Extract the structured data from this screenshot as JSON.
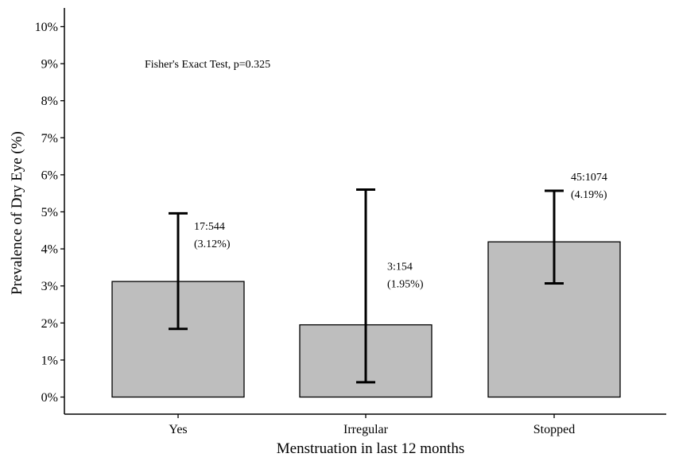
{
  "chart_data": {
    "type": "bar",
    "title": "",
    "xlabel": "Menstruation in last 12 months",
    "ylabel": "Prevalence of Dry Eye (%)",
    "categories": [
      "Yes",
      "Irregular",
      "Stopped"
    ],
    "values": [
      3.12,
      1.95,
      4.19
    ],
    "error_low": [
      1.84,
      0.4,
      3.07
    ],
    "error_high": [
      4.96,
      5.6,
      5.57
    ],
    "value_labels": [
      {
        "count": "17:544",
        "pct": "(3.12%)"
      },
      {
        "count": "3:154",
        "pct": "(1.95%)"
      },
      {
        "count": "45:1074",
        "pct": "(4.19%)"
      }
    ],
    "ylim": [
      0,
      10
    ],
    "yticks": [
      0,
      1,
      2,
      3,
      4,
      5,
      6,
      7,
      8,
      9,
      10
    ],
    "ytick_labels": [
      "0%",
      "1%",
      "2%",
      "3%",
      "4%",
      "5%",
      "6%",
      "7%",
      "8%",
      "9%",
      "10%"
    ],
    "annotation": "Fisher's Exact Test, p=0.325",
    "grid": false,
    "legend": "none",
    "colors": {
      "bar_fill": "#bebebe",
      "bar_stroke": "#000000",
      "error_bar": "#000000",
      "axis": "#000000"
    }
  }
}
